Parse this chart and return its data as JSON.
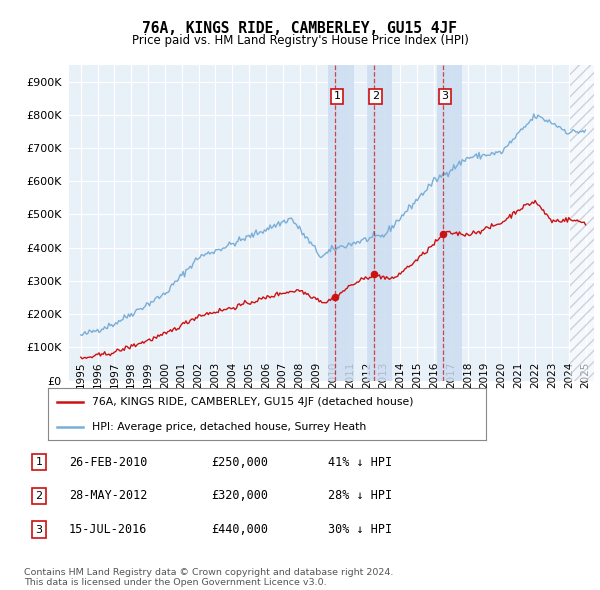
{
  "title": "76A, KINGS RIDE, CAMBERLEY, GU15 4JF",
  "subtitle": "Price paid vs. HM Land Registry's House Price Index (HPI)",
  "ylim": [
    0,
    950000
  ],
  "yticks": [
    0,
    100000,
    200000,
    300000,
    400000,
    500000,
    600000,
    700000,
    800000,
    900000
  ],
  "ytick_labels": [
    "£0",
    "£100K",
    "£200K",
    "£300K",
    "£400K",
    "£500K",
    "£600K",
    "£700K",
    "£800K",
    "£900K"
  ],
  "hpi_color": "#7aaed6",
  "price_color": "#cc1111",
  "bg_color": "#e8f0f8",
  "shade_color": "#ccddf0",
  "legend_entries": [
    "76A, KINGS RIDE, CAMBERLEY, GU15 4JF (detached house)",
    "HPI: Average price, detached house, Surrey Heath"
  ],
  "sale_dates": [
    2010.12,
    2012.41,
    2016.54
  ],
  "sale_prices": [
    250000,
    320000,
    440000
  ],
  "sale_labels": [
    "1",
    "2",
    "3"
  ],
  "table_rows": [
    [
      "1",
      "26-FEB-2010",
      "£250,000",
      "41% ↓ HPI"
    ],
    [
      "2",
      "28-MAY-2012",
      "£320,000",
      "28% ↓ HPI"
    ],
    [
      "3",
      "15-JUL-2016",
      "£440,000",
      "30% ↓ HPI"
    ]
  ],
  "footnote1": "Contains HM Land Registry data © Crown copyright and database right 2024.",
  "footnote2": "This data is licensed under the Open Government Licence v3.0."
}
